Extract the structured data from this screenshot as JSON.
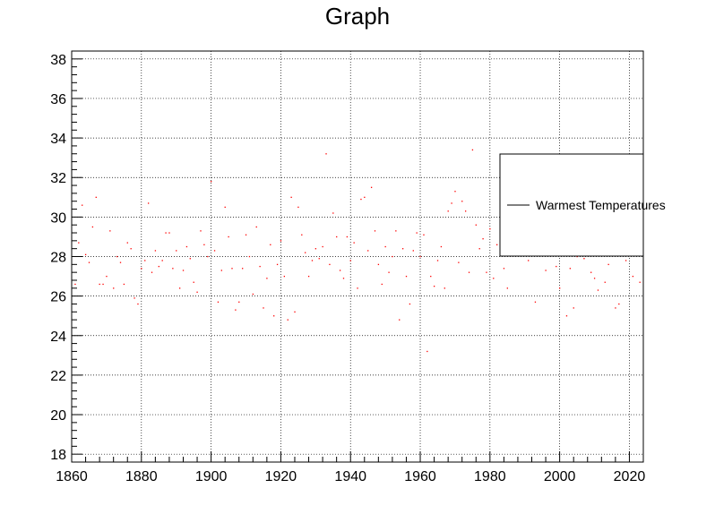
{
  "chart_data": {
    "type": "scatter",
    "title": "Graph",
    "xlabel": "",
    "ylabel": "",
    "xlim": [
      1860,
      2024
    ],
    "ylim": [
      17.6,
      38.4
    ],
    "x_ticks": [
      1860,
      1880,
      1900,
      1920,
      1940,
      1960,
      1980,
      2000,
      2020
    ],
    "y_ticks": [
      18,
      20,
      22,
      24,
      26,
      28,
      30,
      32,
      34,
      36,
      38
    ],
    "grid": true,
    "legend": {
      "position": "right",
      "entries": [
        "Warmest Temperatures"
      ]
    },
    "marker_color": "#ff0000",
    "series": [
      {
        "name": "Warmest Temperatures",
        "points": [
          [
            1861,
            26.6
          ],
          [
            1862,
            28.7
          ],
          [
            1863,
            30.6
          ],
          [
            1864,
            28.1
          ],
          [
            1865,
            27.7
          ],
          [
            1866,
            29.5
          ],
          [
            1867,
            31.0
          ],
          [
            1868,
            26.6
          ],
          [
            1869,
            26.6
          ],
          [
            1870,
            27.0
          ],
          [
            1871,
            29.3
          ],
          [
            1872,
            26.4
          ],
          [
            1873,
            28.0
          ],
          [
            1874,
            27.7
          ],
          [
            1875,
            26.6
          ],
          [
            1876,
            28.7
          ],
          [
            1877,
            28.4
          ],
          [
            1878,
            25.9
          ],
          [
            1879,
            25.6
          ],
          [
            1880,
            27.4
          ],
          [
            1881,
            27.8
          ],
          [
            1882,
            30.7
          ],
          [
            1883,
            27.2
          ],
          [
            1884,
            28.3
          ],
          [
            1885,
            27.5
          ],
          [
            1886,
            27.8
          ],
          [
            1887,
            29.2
          ],
          [
            1888,
            29.2
          ],
          [
            1889,
            27.4
          ],
          [
            1890,
            28.3
          ],
          [
            1891,
            26.4
          ],
          [
            1892,
            27.3
          ],
          [
            1893,
            28.5
          ],
          [
            1894,
            27.9
          ],
          [
            1895,
            26.7
          ],
          [
            1896,
            26.2
          ],
          [
            1897,
            29.3
          ],
          [
            1898,
            28.6
          ],
          [
            1899,
            28.0
          ],
          [
            1900,
            31.8
          ],
          [
            1901,
            28.3
          ],
          [
            1902,
            25.7
          ],
          [
            1903,
            27.3
          ],
          [
            1904,
            30.5
          ],
          [
            1905,
            29.0
          ],
          [
            1906,
            27.4
          ],
          [
            1907,
            25.3
          ],
          [
            1908,
            25.7
          ],
          [
            1909,
            27.4
          ],
          [
            1910,
            29.1
          ],
          [
            1911,
            28.0
          ],
          [
            1912,
            26.1
          ],
          [
            1913,
            29.5
          ],
          [
            1914,
            27.5
          ],
          [
            1915,
            25.4
          ],
          [
            1916,
            26.9
          ],
          [
            1917,
            28.6
          ],
          [
            1918,
            25.0
          ],
          [
            1919,
            27.6
          ],
          [
            1920,
            28.8
          ],
          [
            1921,
            27.0
          ],
          [
            1922,
            24.8
          ],
          [
            1923,
            31.0
          ],
          [
            1924,
            25.2
          ],
          [
            1925,
            30.5
          ],
          [
            1926,
            29.1
          ],
          [
            1927,
            28.2
          ],
          [
            1928,
            27.0
          ],
          [
            1929,
            27.8
          ],
          [
            1930,
            28.4
          ],
          [
            1931,
            27.9
          ],
          [
            1932,
            28.5
          ],
          [
            1933,
            33.2
          ],
          [
            1934,
            27.6
          ],
          [
            1935,
            30.2
          ],
          [
            1936,
            29.0
          ],
          [
            1937,
            27.3
          ],
          [
            1938,
            26.9
          ],
          [
            1939,
            29.0
          ],
          [
            1940,
            27.8
          ],
          [
            1941,
            28.7
          ],
          [
            1942,
            26.4
          ],
          [
            1943,
            30.9
          ],
          [
            1944,
            31.0
          ],
          [
            1945,
            28.3
          ],
          [
            1946,
            31.5
          ],
          [
            1947,
            29.3
          ],
          [
            1948,
            27.6
          ],
          [
            1949,
            26.6
          ],
          [
            1950,
            28.5
          ],
          [
            1951,
            27.2
          ],
          [
            1952,
            28.0
          ],
          [
            1953,
            29.3
          ],
          [
            1954,
            24.8
          ],
          [
            1955,
            28.4
          ],
          [
            1956,
            27.0
          ],
          [
            1957,
            25.6
          ],
          [
            1958,
            28.3
          ],
          [
            1959,
            29.2
          ],
          [
            1960,
            28.0
          ],
          [
            1961,
            29.1
          ],
          [
            1962,
            23.2
          ],
          [
            1963,
            27.0
          ],
          [
            1964,
            26.5
          ],
          [
            1965,
            27.8
          ],
          [
            1966,
            28.5
          ],
          [
            1967,
            26.4
          ],
          [
            1968,
            30.3
          ],
          [
            1969,
            30.7
          ],
          [
            1970,
            31.3
          ],
          [
            1971,
            27.7
          ],
          [
            1972,
            30.8
          ],
          [
            1973,
            30.3
          ],
          [
            1974,
            27.2
          ],
          [
            1975,
            33.4
          ],
          [
            1976,
            29.6
          ],
          [
            1977,
            28.4
          ],
          [
            1978,
            28.9
          ],
          [
            1979,
            27.2
          ],
          [
            1980,
            29.4
          ],
          [
            1981,
            26.9
          ],
          [
            1982,
            28.6
          ],
          [
            1983,
            29.8
          ],
          [
            1984,
            27.4
          ],
          [
            1985,
            26.4
          ],
          [
            1986,
            28.8
          ],
          [
            1987,
            29.9
          ],
          [
            1988,
            30.5
          ],
          [
            1989,
            28.3
          ],
          [
            1990,
            29.7
          ],
          [
            1991,
            27.8
          ],
          [
            1992,
            28.9
          ],
          [
            1993,
            25.7
          ],
          [
            1994,
            28.5
          ],
          [
            1995,
            29.6
          ],
          [
            1996,
            27.3
          ],
          [
            1997,
            29.1
          ],
          [
            1998,
            28.2
          ],
          [
            1999,
            27.5
          ],
          [
            2000,
            26.4
          ],
          [
            2001,
            29.6
          ],
          [
            2002,
            25.0
          ],
          [
            2003,
            27.4
          ],
          [
            2004,
            25.4
          ],
          [
            2005,
            28.0
          ],
          [
            2006,
            29.3
          ],
          [
            2007,
            27.9
          ],
          [
            2008,
            28.3
          ],
          [
            2009,
            27.2
          ],
          [
            2010,
            26.9
          ],
          [
            2011,
            26.3
          ],
          [
            2012,
            28.7
          ],
          [
            2013,
            26.7
          ],
          [
            2014,
            27.6
          ],
          [
            2015,
            28.5
          ],
          [
            2016,
            25.4
          ],
          [
            2017,
            25.6
          ],
          [
            2018,
            28.9
          ],
          [
            2019,
            27.8
          ],
          [
            2020,
            29.1
          ],
          [
            2021,
            27.0
          ],
          [
            2022,
            28.4
          ],
          [
            2023,
            26.7
          ]
        ]
      }
    ]
  }
}
